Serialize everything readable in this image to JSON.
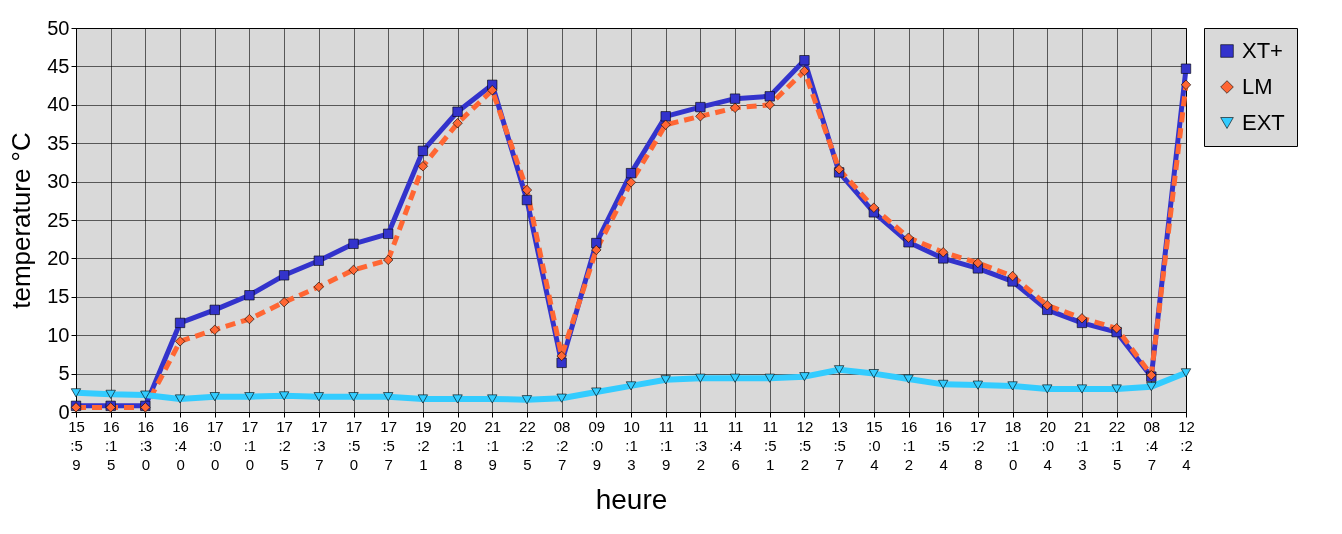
{
  "chart_data": {
    "type": "line",
    "xlabel": "heure",
    "ylabel": "temperature °C",
    "categories": [
      "15:59",
      "16:15",
      "16:30",
      "16:40",
      "17:00",
      "17:10",
      "17:25",
      "17:37",
      "17:50",
      "17:57",
      "19:21",
      "20:18",
      "21:19",
      "22:25",
      "08:27",
      "09:09",
      "10:13",
      "11:19",
      "11:32",
      "11:46",
      "11:51",
      "12:52",
      "13:57",
      "15:04",
      "16:12",
      "16:54",
      "17:28",
      "18:10",
      "20:04",
      "21:13",
      "22:15",
      "08:47",
      "12:24"
    ],
    "series": [
      {
        "name": "XT+",
        "color": "#3333cc",
        "marker": "square",
        "line_style": "solid",
        "values": [
          0.8,
          0.8,
          0.8,
          11.6,
          13.3,
          15.2,
          17.8,
          19.7,
          21.9,
          23.2,
          34.0,
          39.1,
          42.6,
          27.6,
          6.4,
          22.0,
          31.1,
          38.5,
          39.7,
          40.8,
          41.1,
          45.8,
          31.2,
          26.0,
          22.1,
          20.0,
          18.7,
          17.0,
          13.3,
          11.6,
          10.4,
          4.6,
          44.7
        ]
      },
      {
        "name": "LM",
        "color": "#ff6633",
        "marker": "diamond",
        "line_style": "dashed",
        "values": [
          0.6,
          0.6,
          0.6,
          9.2,
          10.7,
          12.1,
          14.3,
          16.3,
          18.5,
          19.8,
          32.0,
          37.6,
          41.9,
          28.9,
          7.3,
          21.1,
          29.9,
          37.4,
          38.5,
          39.6,
          40.0,
          44.4,
          31.6,
          26.6,
          22.7,
          20.8,
          19.4,
          17.7,
          13.9,
          12.2,
          10.9,
          4.8,
          42.6
        ]
      },
      {
        "name": "EXT",
        "color": "#33ccff",
        "marker": "triangle-down",
        "line_style": "solid",
        "values": [
          2.5,
          2.3,
          2.2,
          1.7,
          2.0,
          2.0,
          2.1,
          2.0,
          2.0,
          2.0,
          1.7,
          1.7,
          1.7,
          1.6,
          1.8,
          2.6,
          3.4,
          4.2,
          4.4,
          4.4,
          4.4,
          4.6,
          5.5,
          5.0,
          4.3,
          3.6,
          3.5,
          3.4,
          3.0,
          3.0,
          3.0,
          3.3,
          5.1
        ]
      }
    ],
    "ylim": [
      0,
      50
    ],
    "yticks": [
      0,
      5,
      10,
      15,
      20,
      25,
      30,
      35,
      40,
      45,
      50
    ],
    "grid": true,
    "legend": "right"
  }
}
